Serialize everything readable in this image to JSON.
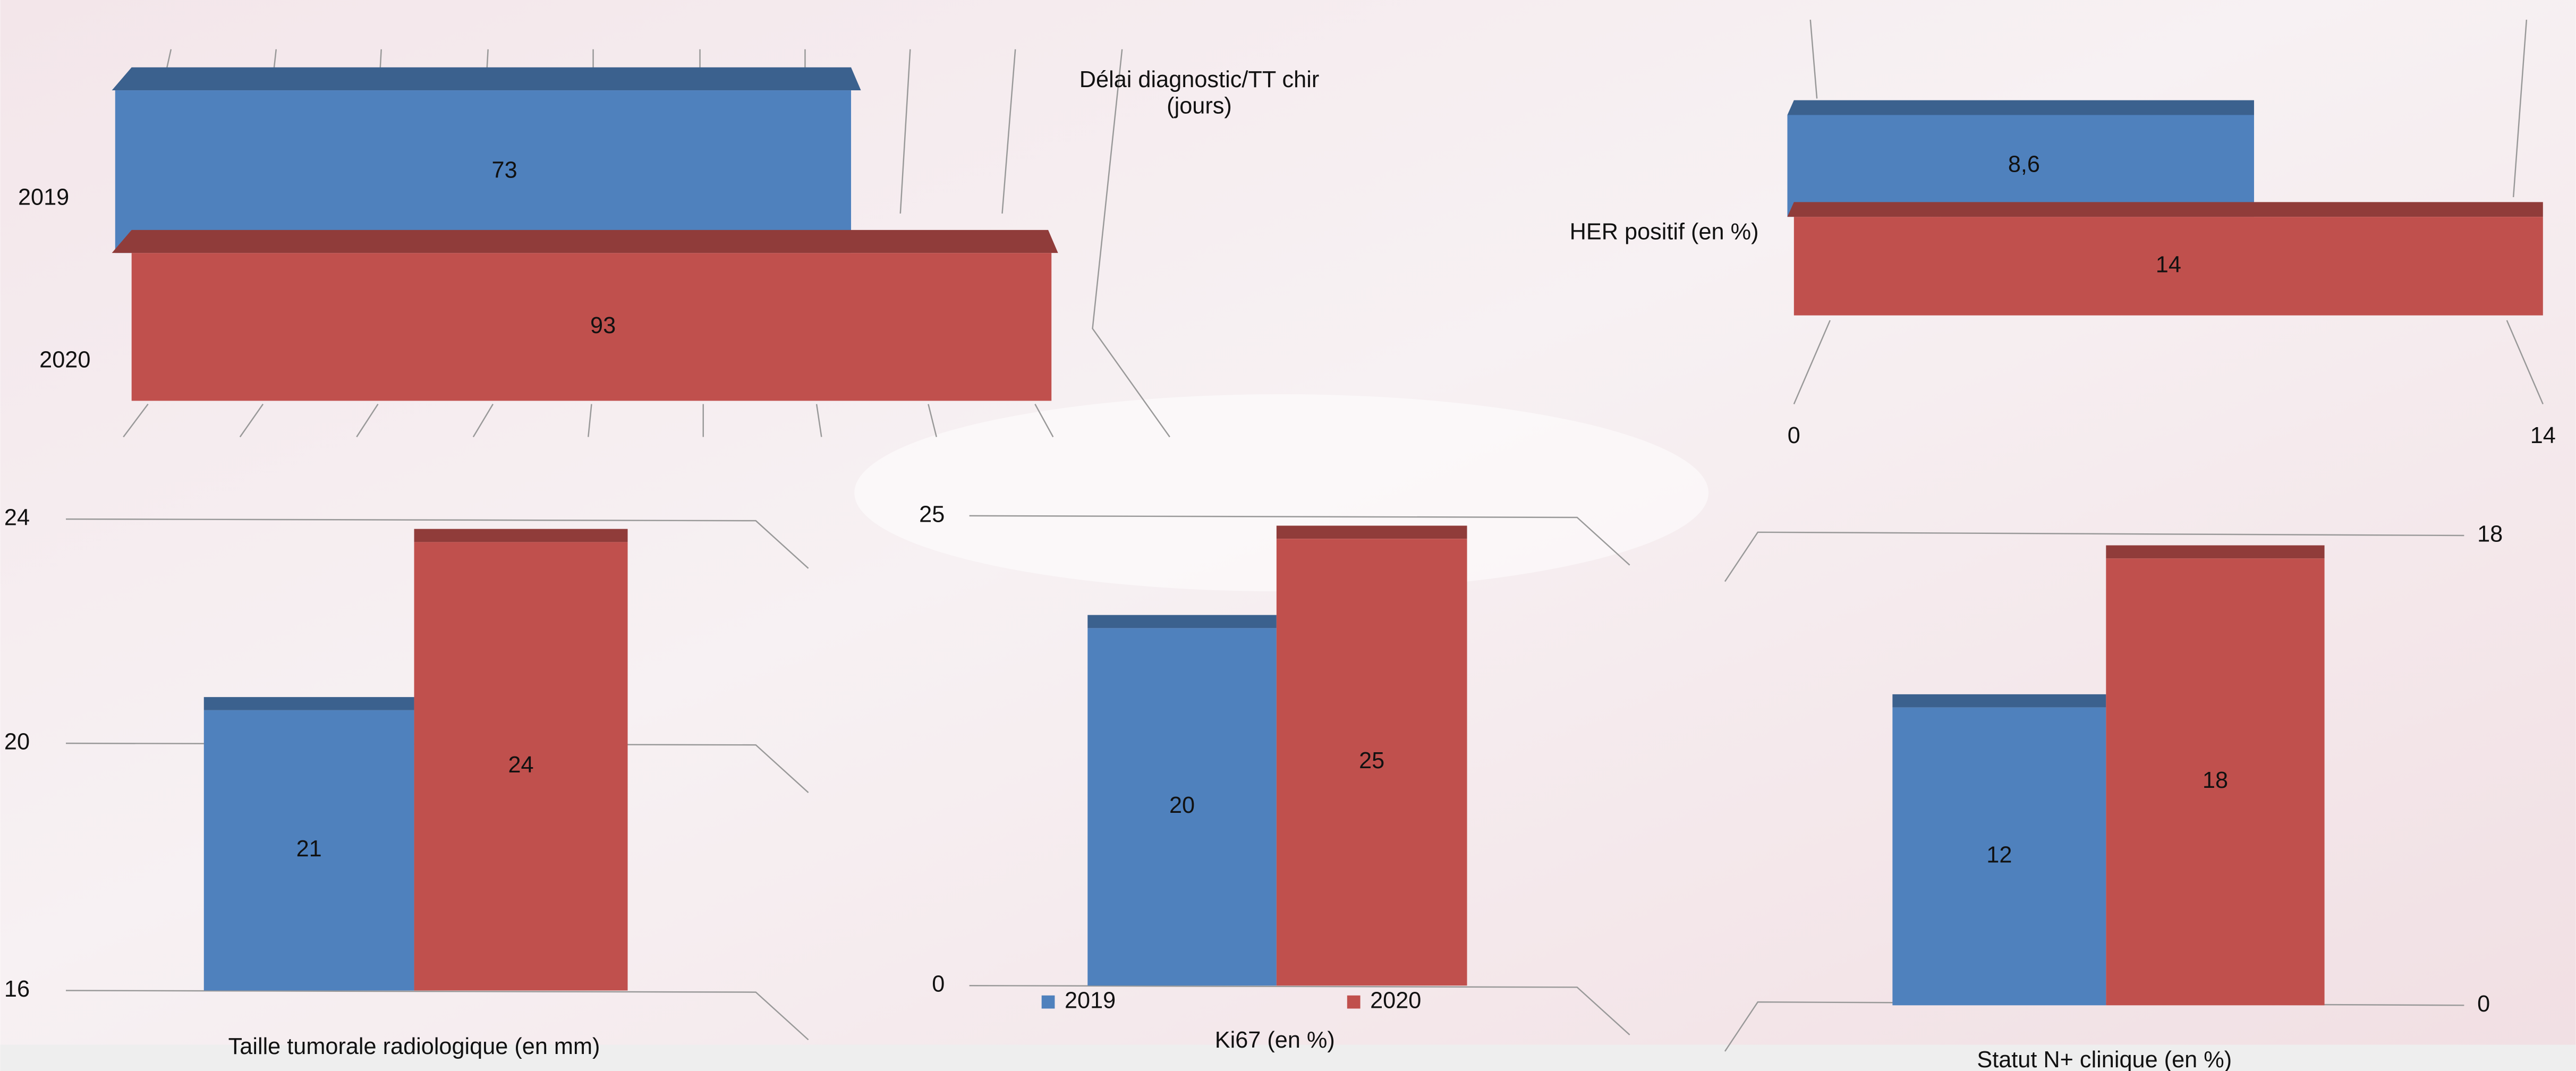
{
  "chart_data": [
    {
      "type": "hbar",
      "title": "Délai diagnostic/TT chir (jours)",
      "categories": [
        "2019",
        "2020"
      ],
      "values": [
        73,
        93
      ],
      "colors": [
        "#4f81bd",
        "#c0504d"
      ]
    },
    {
      "type": "hbar-series",
      "xlabel": "HER positif (en %)",
      "xlim": [
        0,
        14
      ],
      "xticks": [
        0,
        14
      ],
      "series": [
        {
          "name": "2019",
          "color": "#4f81bd",
          "values": [
            8.6
          ],
          "value_labels": [
            "8,6"
          ]
        },
        {
          "name": "2020",
          "color": "#c0504d",
          "values": [
            14
          ]
        }
      ]
    },
    {
      "type": "bar",
      "title": "Taille tumorale radiologique (en mm)",
      "ylim": [
        16,
        24
      ],
      "yticks": [
        16,
        20,
        24
      ],
      "series": [
        {
          "name": "2019",
          "color": "#4f81bd",
          "values": [
            21
          ]
        },
        {
          "name": "2020",
          "color": "#c0504d",
          "values": [
            24
          ]
        }
      ]
    },
    {
      "type": "bar",
      "title": "Ki67 (en %)",
      "ylim": [
        0,
        25
      ],
      "yticks": [
        0,
        25
      ],
      "legend": true,
      "series": [
        {
          "name": "2019",
          "color": "#4f81bd",
          "values": [
            20
          ]
        },
        {
          "name": "2020",
          "color": "#c0504d",
          "values": [
            25
          ]
        }
      ]
    },
    {
      "type": "bar",
      "title": "Statut N+ clinique (en %)",
      "ylim": [
        0,
        18
      ],
      "yticks": [
        0,
        18
      ],
      "yaxis_side": "right",
      "series": [
        {
          "name": "2019",
          "color": "#4f81bd",
          "values": [
            12
          ]
        },
        {
          "name": "2020",
          "color": "#c0504d",
          "values": [
            18
          ]
        }
      ]
    }
  ]
}
